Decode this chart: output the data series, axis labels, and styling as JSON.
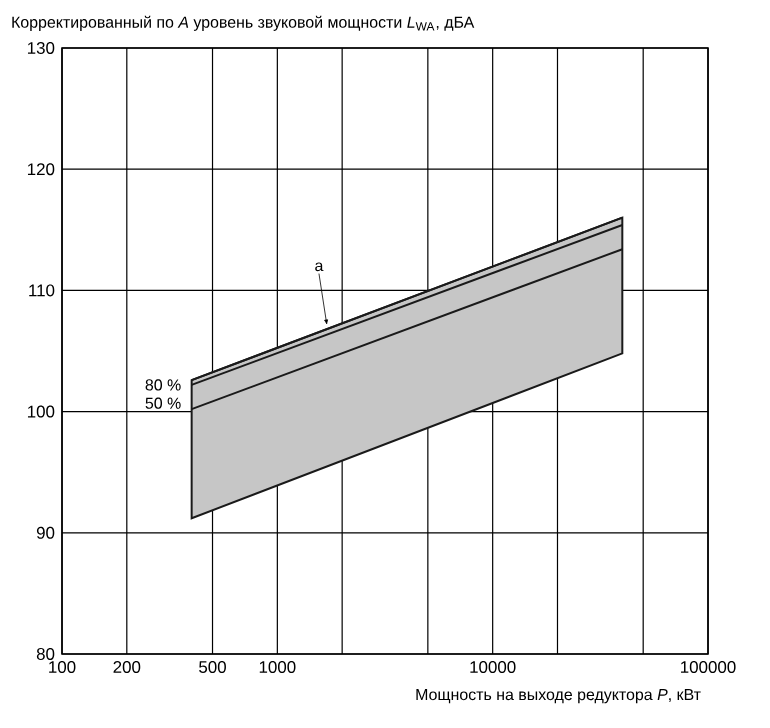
{
  "chart_data": {
    "type": "line",
    "ylabel": "Корректированный по *A* уровень звуковой мощности *L*$_{WA}$, дБА",
    "xlabel": "Мощность на выходе редуктора *P*, кВт",
    "x": [
      400,
      40000
    ],
    "series": [
      {
        "color": "#1a1a1a",
        "values": [
          102.6,
          116.0
        ],
        "lower": [
          91.2,
          104.8
        ],
        "upper": [
          102.6,
          116.0
        ]
      },
      {
        "name": "80 %",
        "color": "#1a1a1a",
        "values": [
          102.2,
          115.4
        ]
      },
      {
        "name": "50 %",
        "color": "#1a1a1a",
        "values": [
          100.2,
          113.4
        ]
      }
    ],
    "annotations": [
      {
        "text": "a",
        "x": 1700,
        "y": 107.1
      }
    ],
    "log": "x",
    "xlim": [
      100,
      100000
    ],
    "xticks": [
      100,
      200,
      500,
      1000,
      {
        "value": 2000,
        "label": null
      },
      {
        "value": 5000,
        "label": null
      },
      10000,
      {
        "value": 20000,
        "label": null
      },
      {
        "value": 50000,
        "label": null
      },
      100000
    ],
    "ylim": [
      80,
      130
    ],
    "yticks": [
      80,
      90,
      100,
      110,
      120,
      130
    ],
    "grid": true,
    "marker": "none",
    "line_style": "solid"
  }
}
